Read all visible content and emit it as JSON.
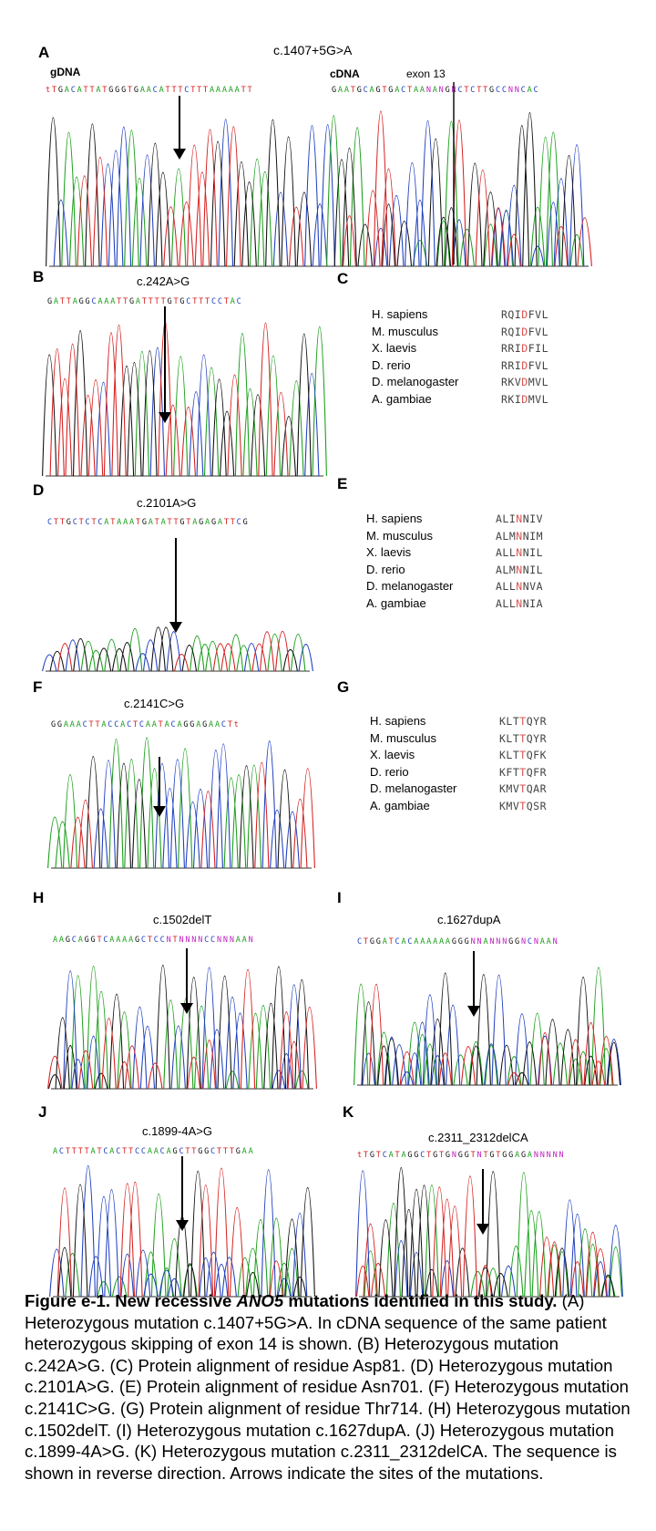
{
  "panelA": {
    "label": "A",
    "title": "c.1407+5G>A",
    "gdna_label": "gDNA",
    "gdna_seq": "tTGACATTATGGGTGAACATTTCTTTAAAAATT",
    "cdna_label": "cDNA",
    "cdna_seq": "GAATGCAGTGACTAANANGNCTCTTGCCNNCAC",
    "exon_label": "exon 13"
  },
  "panelB": {
    "label": "B",
    "title": "c.242A>G",
    "seq": "GATTAGGCAAATTGATTTTGTGCTTTCCTAC"
  },
  "panelC": {
    "label": "C",
    "rows": [
      {
        "species": "H. sapiens",
        "pre": "RQI",
        "hl": "D",
        "post": "FVL"
      },
      {
        "species": "M. musculus",
        "pre": "RQI",
        "hl": "D",
        "post": "FVL"
      },
      {
        "species": "X. laevis",
        "pre": "RRI",
        "hl": "D",
        "post": "FIL"
      },
      {
        "species": "D. rerio",
        "pre": "RRI",
        "hl": "D",
        "post": "FVL"
      },
      {
        "species": "D. melanogaster",
        "pre": "RKV",
        "hl": "D",
        "post": "MVL"
      },
      {
        "species": "A. gambiae",
        "pre": "RKI",
        "hl": "D",
        "post": "MVL"
      }
    ]
  },
  "panelD": {
    "label": "D",
    "title": "c.2101A>G",
    "seq": "CTTGCTCTCATAAATGATATTGTAGAGATTCG"
  },
  "panelE": {
    "label": "E",
    "rows": [
      {
        "species": "H. sapiens",
        "pre": "ALI",
        "hl": "N",
        "post": "NIV"
      },
      {
        "species": "M. musculus",
        "pre": "ALM",
        "hl": "N",
        "post": "NIM"
      },
      {
        "species": "X. laevis",
        "pre": "ALL",
        "hl": "N",
        "post": "NIL"
      },
      {
        "species": "D. rerio",
        "pre": "ALM",
        "hl": "N",
        "post": "NIL"
      },
      {
        "species": "D. melanogaster",
        "pre": "ALL",
        "hl": "N",
        "post": "NVA"
      },
      {
        "species": "A. gambiae",
        "pre": "ALL",
        "hl": "N",
        "post": "NIA"
      }
    ]
  },
  "panelF": {
    "label": "F",
    "title": "c.2141C>G",
    "seq": "GGAAACTTACCACTCAATACAGGAGAACTt"
  },
  "panelG": {
    "label": "G",
    "rows": [
      {
        "species": "H. sapiens",
        "pre": "KLT",
        "hl": "T",
        "post": "QYR"
      },
      {
        "species": "M. musculus",
        "pre": "KLT",
        "hl": "T",
        "post": "QYR"
      },
      {
        "species": "X. laevis",
        "pre": "KLT",
        "hl": "T",
        "post": "QFK"
      },
      {
        "species": "D. rerio",
        "pre": "KFT",
        "hl": "T",
        "post": "QFR"
      },
      {
        "species": "D. melanogaster",
        "pre": "KMV",
        "hl": "T",
        "post": "QAR"
      },
      {
        "species": "A. gambiae",
        "pre": "KMV",
        "hl": "T",
        "post": "QSR"
      }
    ]
  },
  "panelH": {
    "label": "H",
    "title": "c.1502delT",
    "seq": "AAGCAGGTCAAAAGCTCCNTNNNNCCNNNAAN"
  },
  "panelI": {
    "label": "I",
    "title": "c.1627dupA",
    "seq": "CTGGATCACAAAAAAGGGNNANNNGGNCNAAN"
  },
  "panelJ": {
    "label": "J",
    "title": "c.1899-4A>G",
    "seq": "ACTTTTATCACTTCCAACAGCTTGGCTTTGAA"
  },
  "panelK": {
    "label": "K",
    "title": "c.2311_2312delCA",
    "seq": "tTGTCATAGGCTGTGNGGTNTGTGGAGANNNNN"
  },
  "caption": {
    "head1": "Figure e-1. New recessive ",
    "head_gene": "ANO5",
    "head2": " mutations identified in this study.",
    "body": "(A) Heterozygous mutation c.1407+5G>A. In cDNA sequence of the same patient heterozygous skipping of exon 14 is shown. (B) Heterozygous mutation c.242A>G. (C) Protein alignment of residue Asp81. (D) Heterozygous mutation c.2101A>G. (E) Protein alignment of residue Asn701. (F) Heterozygous mutation c.2141C>G. (G) Protein alignment of residue Thr714. (H) Heterozygous mutation c.1502delT. (I) Heterozygous mutation c.1627dupA. (J) Heterozygous mutation c.1899-4A>G. (K) Heterozygous mutation c.2311_2312delCA. The sequence is shown in reverse direction. Arrows indicate the sites of the mutations."
  },
  "colors": {
    "A": "#1a9e1a",
    "C": "#1f3fbf",
    "G": "#111111",
    "T": "#d62020",
    "N": "#c020c0"
  }
}
